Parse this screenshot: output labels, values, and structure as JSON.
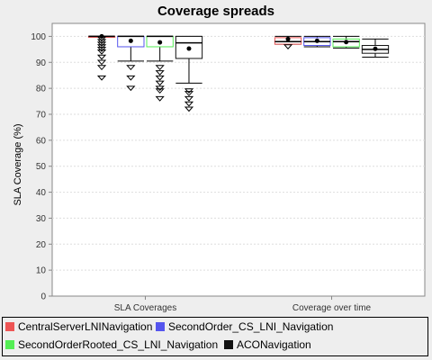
{
  "chart_data": {
    "type": "box",
    "title": "Coverage spreads",
    "ylabel": "SLA Coverage (%)",
    "xlabel": "",
    "ylim": [
      0,
      105
    ],
    "yticks": [
      0,
      10,
      20,
      30,
      40,
      50,
      60,
      70,
      80,
      90,
      100
    ],
    "grid": true,
    "legend_position": "bottom",
    "categories": [
      "SLA Coverages",
      "Coverage over time"
    ],
    "series": [
      {
        "name": "CentralServerLNINavigation",
        "color": "#ee5555",
        "boxes": [
          {
            "min": 100,
            "q1": 100,
            "median": 100,
            "q3": 100,
            "max": 100,
            "mean": 100,
            "outliers": [
              84,
              88,
              90,
              92,
              94,
              95,
              96,
              97,
              98,
              99
            ]
          },
          {
            "min": 97,
            "q1": 97,
            "median": 98,
            "q3": 99.5,
            "max": 100,
            "mean": 99,
            "outliers": [
              96
            ]
          }
        ]
      },
      {
        "name": "SecondOrder_CS_LNI_Navigation",
        "color": "#5555ee",
        "boxes": [
          {
            "min": 90.5,
            "q1": 96,
            "median": 100,
            "q3": 100,
            "max": 100,
            "mean": 98.3,
            "outliers": [
              80,
              84,
              88
            ]
          },
          {
            "min": 96,
            "q1": 96.5,
            "median": 98,
            "q3": 99.5,
            "max": 100,
            "mean": 98.3,
            "outliers": []
          }
        ]
      },
      {
        "name": "SecondOrderRooted_CS_LNI_Navigation",
        "color": "#55ee55",
        "boxes": [
          {
            "min": 90.5,
            "q1": 96,
            "median": 100,
            "q3": 100,
            "max": 100,
            "mean": 97.7,
            "outliers": [
              76,
              79,
              80,
              82,
              84,
              86,
              88
            ]
          },
          {
            "min": 95.5,
            "q1": 96,
            "median": 98,
            "q3": 99,
            "max": 100,
            "mean": 97.8,
            "outliers": []
          }
        ]
      },
      {
        "name": "ACONavigation",
        "color": "#111111",
        "boxes": [
          {
            "min": 82,
            "q1": 91.5,
            "median": 97.5,
            "q3": 100,
            "max": 100,
            "mean": 95.3,
            "outliers": [
              72,
              74,
              76,
              78,
              79
            ]
          },
          {
            "min": 92,
            "q1": 93.5,
            "median": 95,
            "q3": 96.5,
            "max": 99,
            "mean": 95.2,
            "outliers": []
          }
        ]
      }
    ]
  }
}
